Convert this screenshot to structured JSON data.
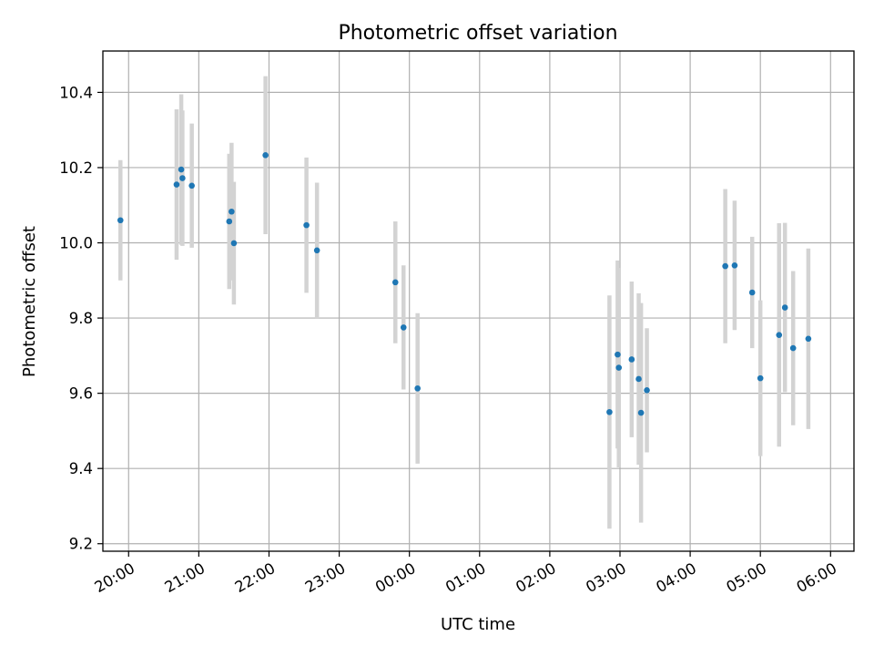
{
  "chart_data": {
    "type": "scatter",
    "title": "Photometric offset variation",
    "xlabel": "UTC time",
    "ylabel": "Photometric offset",
    "x_axis_type": "time",
    "x_start": "19:38",
    "x_end": "06:20",
    "x_ticks": [
      "20:00",
      "21:00",
      "22:00",
      "23:00",
      "00:00",
      "01:00",
      "02:00",
      "03:00",
      "04:00",
      "05:00",
      "06:00"
    ],
    "y_ticks": [
      9.2,
      9.4,
      9.6,
      9.8,
      10.0,
      10.2,
      10.4
    ],
    "ylim": [
      9.18,
      10.51
    ],
    "grid": true,
    "colors": {
      "point": "#1f77b4",
      "errorbar": "#d3d3d3"
    },
    "points": [
      {
        "x": "19:53",
        "y": 10.06,
        "err": 0.16
      },
      {
        "x": "20:41",
        "y": 10.155,
        "err": 0.2
      },
      {
        "x": "20:45",
        "y": 10.195,
        "err": 0.2
      },
      {
        "x": "20:46",
        "y": 10.172,
        "err": 0.18
      },
      {
        "x": "20:54",
        "y": 10.152,
        "err": 0.165
      },
      {
        "x": "21:26",
        "y": 10.057,
        "err": 0.18
      },
      {
        "x": "21:28",
        "y": 10.083,
        "err": 0.183
      },
      {
        "x": "21:30",
        "y": 9.999,
        "err": 0.163
      },
      {
        "x": "21:57",
        "y": 10.233,
        "err": 0.21
      },
      {
        "x": "22:32",
        "y": 10.047,
        "err": 0.18
      },
      {
        "x": "22:41",
        "y": 9.98,
        "err": 0.18
      },
      {
        "x": "23:48",
        "y": 9.895,
        "err": 0.162
      },
      {
        "x": "23:55",
        "y": 9.775,
        "err": 0.165
      },
      {
        "x": "00:07",
        "y": 9.613,
        "err": 0.2
      },
      {
        "x": "02:51",
        "y": 9.55,
        "err": 0.31
      },
      {
        "x": "02:58",
        "y": 9.703,
        "err": 0.25
      },
      {
        "x": "02:59",
        "y": 9.668,
        "err": 0.265
      },
      {
        "x": "03:10",
        "y": 9.69,
        "err": 0.207
      },
      {
        "x": "03:16",
        "y": 9.638,
        "err": 0.228
      },
      {
        "x": "03:18",
        "y": 9.548,
        "err": 0.292
      },
      {
        "x": "03:23",
        "y": 9.608,
        "err": 0.165
      },
      {
        "x": "04:30",
        "y": 9.938,
        "err": 0.205
      },
      {
        "x": "04:38",
        "y": 9.94,
        "err": 0.172
      },
      {
        "x": "04:53",
        "y": 9.868,
        "err": 0.148
      },
      {
        "x": "05:00",
        "y": 9.64,
        "err": 0.207
      },
      {
        "x": "05:16",
        "y": 9.755,
        "err": 0.297
      },
      {
        "x": "05:21",
        "y": 9.828,
        "err": 0.225
      },
      {
        "x": "05:28",
        "y": 9.72,
        "err": 0.205
      },
      {
        "x": "05:41",
        "y": 9.745,
        "err": 0.24
      }
    ]
  }
}
